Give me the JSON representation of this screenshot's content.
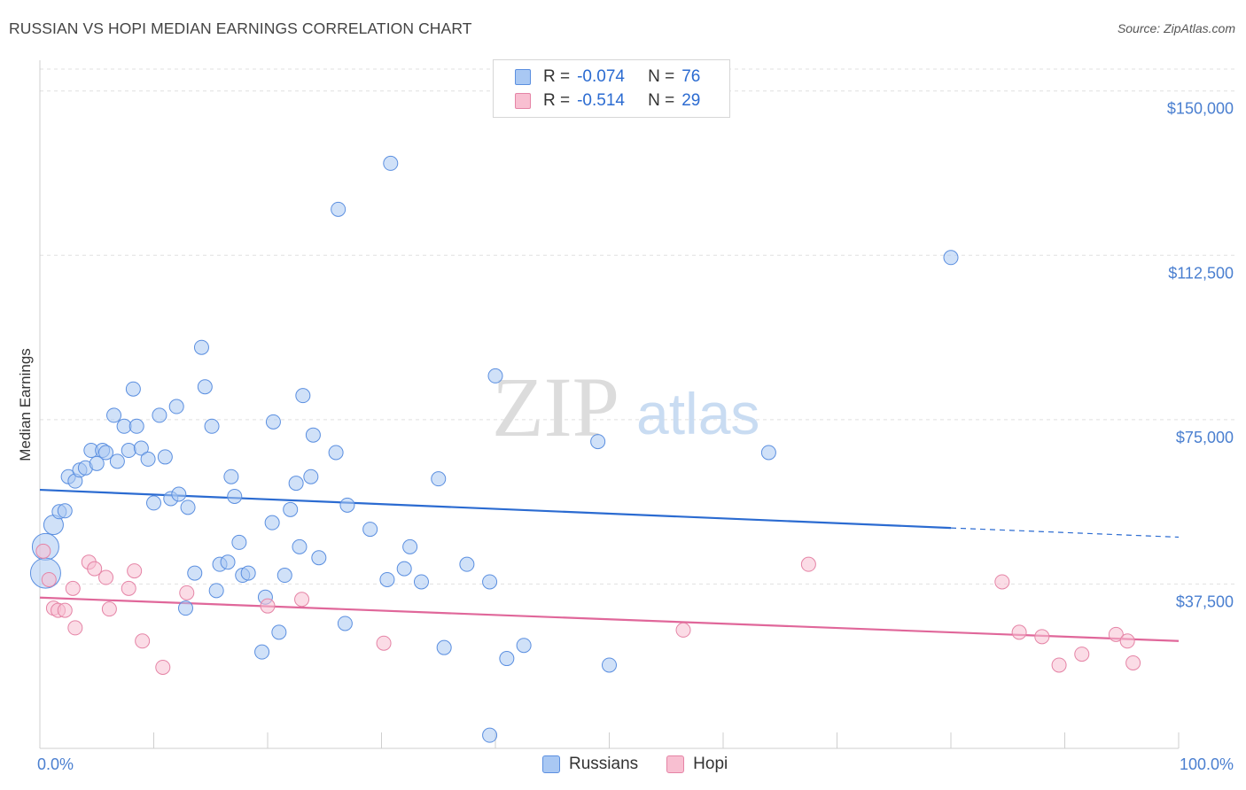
{
  "title": "RUSSIAN VS HOPI MEDIAN EARNINGS CORRELATION CHART",
  "source": "Source: ZipAtlas.com",
  "watermark": {
    "zip": "ZIP",
    "atlas": "atlas"
  },
  "legend": {
    "rows": [
      {
        "r_label": "R =",
        "r_value": "-0.074",
        "n_label": "N =",
        "n_value": "76",
        "color": "#a9c8f3",
        "border": "#5b8fe0"
      },
      {
        "r_label": "R =",
        "r_value": "-0.514",
        "n_label": "N =",
        "n_value": "29",
        "color": "#f8bfd1",
        "border": "#e584a6"
      }
    ]
  },
  "bottom_legend": [
    {
      "label": "Russians",
      "color": "#a9c8f3",
      "border": "#5b8fe0"
    },
    {
      "label": "Hopi",
      "color": "#f8bfd1",
      "border": "#e584a6"
    }
  ],
  "colors": {
    "russians_fill": "rgba(169,200,243,0.55)",
    "russians_stroke": "#5b8fe0",
    "russians_line": "#2b6bd1",
    "hopi_fill": "rgba(248,191,209,0.55)",
    "hopi_stroke": "#e584a6",
    "hopi_line": "#e0679a",
    "grid": "#e0e0e0",
    "tick_label": "#4a7fd0"
  },
  "chart_data": {
    "type": "scatter",
    "title": "RUSSIAN VS HOPI MEDIAN EARNINGS CORRELATION CHART",
    "xlabel": "",
    "ylabel": "Median Earnings",
    "xlim": [
      0,
      100
    ],
    "ylim": [
      0,
      155000
    ],
    "x_tick_labels": [
      "0.0%",
      "100.0%"
    ],
    "y_ticks": [
      37500,
      75000,
      112500,
      150000
    ],
    "y_tick_labels": [
      "$37,500",
      "$75,000",
      "$112,500",
      "$150,000"
    ],
    "grid": true,
    "legend_placement": "top-center",
    "series": [
      {
        "name": "Russians",
        "points": [
          [
            0.5,
            46000
          ],
          [
            0.5,
            40000
          ],
          [
            1.2,
            51000
          ],
          [
            1.7,
            54000
          ],
          [
            2.2,
            54200
          ],
          [
            2.5,
            62000
          ],
          [
            3.1,
            61000
          ],
          [
            3.5,
            63500
          ],
          [
            4,
            64000
          ],
          [
            4.5,
            68000
          ],
          [
            5,
            65000
          ],
          [
            5.5,
            68000
          ],
          [
            5.8,
            67500
          ],
          [
            6.5,
            76000
          ],
          [
            6.8,
            65500
          ],
          [
            7.4,
            73500
          ],
          [
            7.8,
            68000
          ],
          [
            8.2,
            82000
          ],
          [
            8.5,
            73500
          ],
          [
            8.9,
            68500
          ],
          [
            9.5,
            66000
          ],
          [
            10,
            56000
          ],
          [
            10.5,
            76000
          ],
          [
            11,
            66500
          ],
          [
            11.5,
            57000
          ],
          [
            12,
            78000
          ],
          [
            12.2,
            58000
          ],
          [
            12.8,
            32000
          ],
          [
            13,
            55000
          ],
          [
            13.6,
            40000
          ],
          [
            14.2,
            91500
          ],
          [
            14.5,
            82500
          ],
          [
            15.1,
            73500
          ],
          [
            15.5,
            36000
          ],
          [
            15.8,
            42000
          ],
          [
            16.5,
            42500
          ],
          [
            16.8,
            62000
          ],
          [
            17.1,
            57500
          ],
          [
            17.5,
            47000
          ],
          [
            17.8,
            39500
          ],
          [
            18.3,
            40000
          ],
          [
            19.5,
            22000
          ],
          [
            19.8,
            34500
          ],
          [
            20.4,
            51500
          ],
          [
            20.5,
            74500
          ],
          [
            21,
            26500
          ],
          [
            21.5,
            39500
          ],
          [
            22,
            54500
          ],
          [
            22.5,
            60500
          ],
          [
            22.8,
            46000
          ],
          [
            23.1,
            80500
          ],
          [
            23.8,
            62000
          ],
          [
            24,
            71500
          ],
          [
            24.5,
            43500
          ],
          [
            26,
            67500
          ],
          [
            26.2,
            123000
          ],
          [
            26.8,
            28500
          ],
          [
            27,
            55500
          ],
          [
            29,
            50000
          ],
          [
            30.5,
            38500
          ],
          [
            30.8,
            133500
          ],
          [
            32,
            41000
          ],
          [
            32.5,
            46000
          ],
          [
            33.5,
            38000
          ],
          [
            35,
            61500
          ],
          [
            35.5,
            23000
          ],
          [
            37.5,
            42000
          ],
          [
            39.5,
            38000
          ],
          [
            39.5,
            3000
          ],
          [
            40,
            85000
          ],
          [
            41,
            20500
          ],
          [
            42.5,
            23500
          ],
          [
            49,
            70000
          ],
          [
            50,
            19000
          ],
          [
            64,
            67500
          ],
          [
            80,
            112000
          ]
        ],
        "trend": {
          "x0": 0,
          "y0": 59000,
          "x1": 80,
          "y1": 50300,
          "dash_to_x": 100,
          "dash_to_y": 48200
        }
      },
      {
        "name": "Hopi",
        "points": [
          [
            0.3,
            45000
          ],
          [
            0.8,
            38500
          ],
          [
            1.2,
            32000
          ],
          [
            1.6,
            31500
          ],
          [
            2.2,
            31500
          ],
          [
            2.9,
            36500
          ],
          [
            3.1,
            27500
          ],
          [
            4.3,
            42500
          ],
          [
            4.8,
            41000
          ],
          [
            5.8,
            39000
          ],
          [
            6.1,
            31800
          ],
          [
            7.8,
            36500
          ],
          [
            8.3,
            40500
          ],
          [
            9,
            24500
          ],
          [
            10.8,
            18500
          ],
          [
            12.9,
            35500
          ],
          [
            20,
            32500
          ],
          [
            23,
            34000
          ],
          [
            30.2,
            24000
          ],
          [
            56.5,
            27000
          ],
          [
            67.5,
            42000
          ],
          [
            84.5,
            38000
          ],
          [
            86,
            26500
          ],
          [
            88,
            25500
          ],
          [
            89.5,
            19000
          ],
          [
            91.5,
            21500
          ],
          [
            94.5,
            26000
          ],
          [
            95.5,
            24500
          ],
          [
            96,
            19500
          ]
        ],
        "trend": {
          "x0": 0,
          "y0": 34400,
          "x1": 100,
          "y1": 24500
        }
      }
    ]
  }
}
